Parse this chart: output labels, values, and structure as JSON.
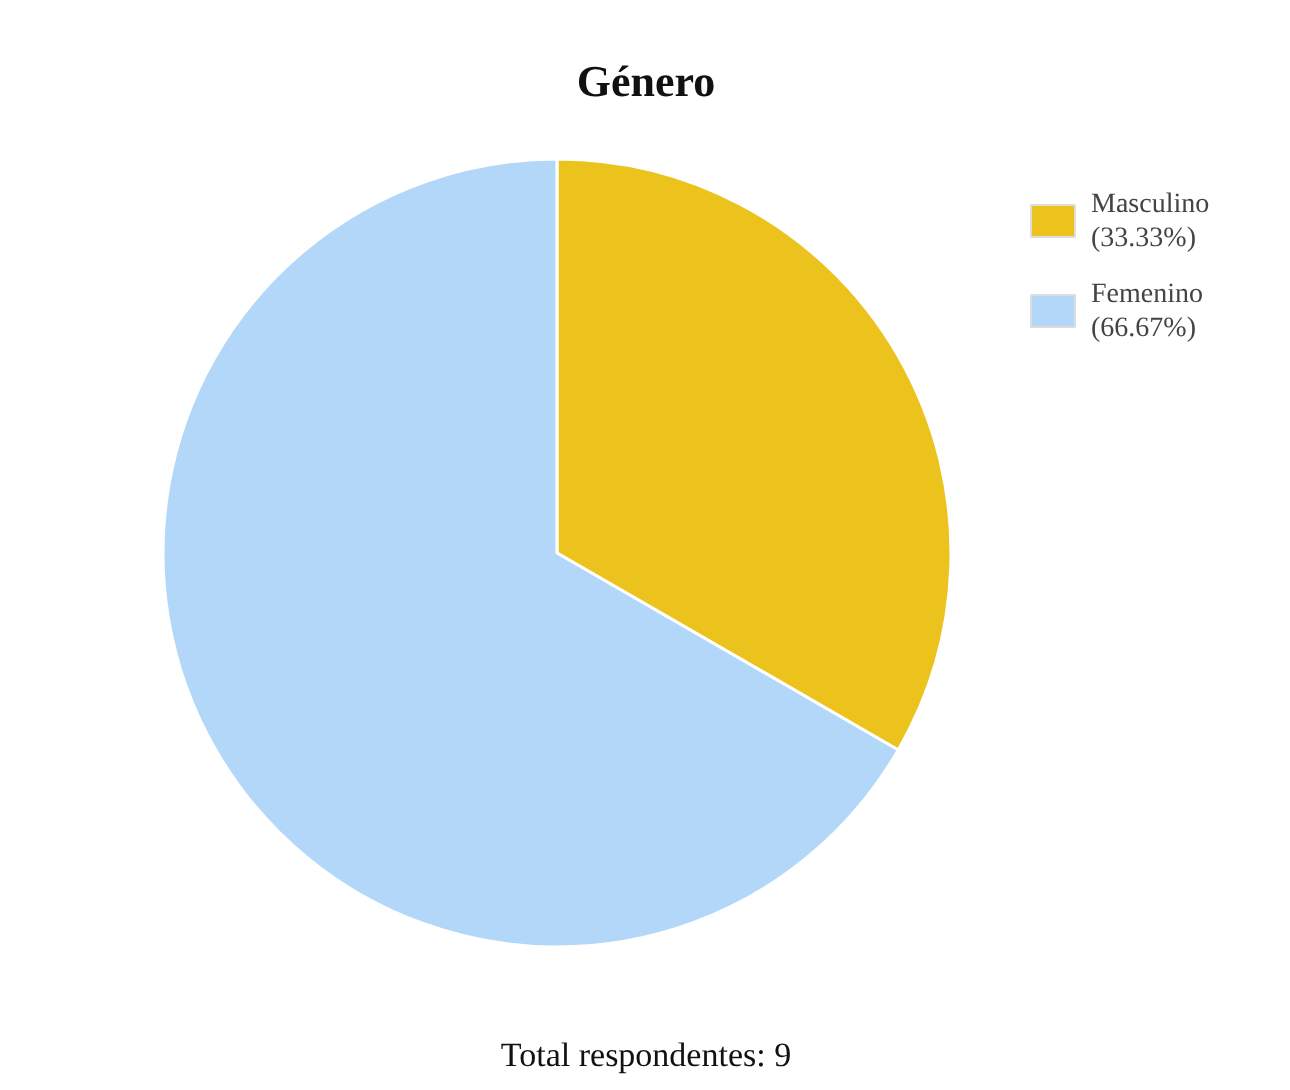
{
  "chart_data": {
    "type": "pie",
    "title": "Género",
    "categories": [
      "Masculino",
      "Femenino"
    ],
    "values": [
      33.33,
      66.67
    ],
    "value_labels": [
      "(33.33%)",
      "(66.67%)"
    ],
    "colors": [
      "#ebc31c",
      "#b3d7f9"
    ],
    "legend": "top right",
    "annotations": [
      "Total respondentes: 9"
    ]
  }
}
